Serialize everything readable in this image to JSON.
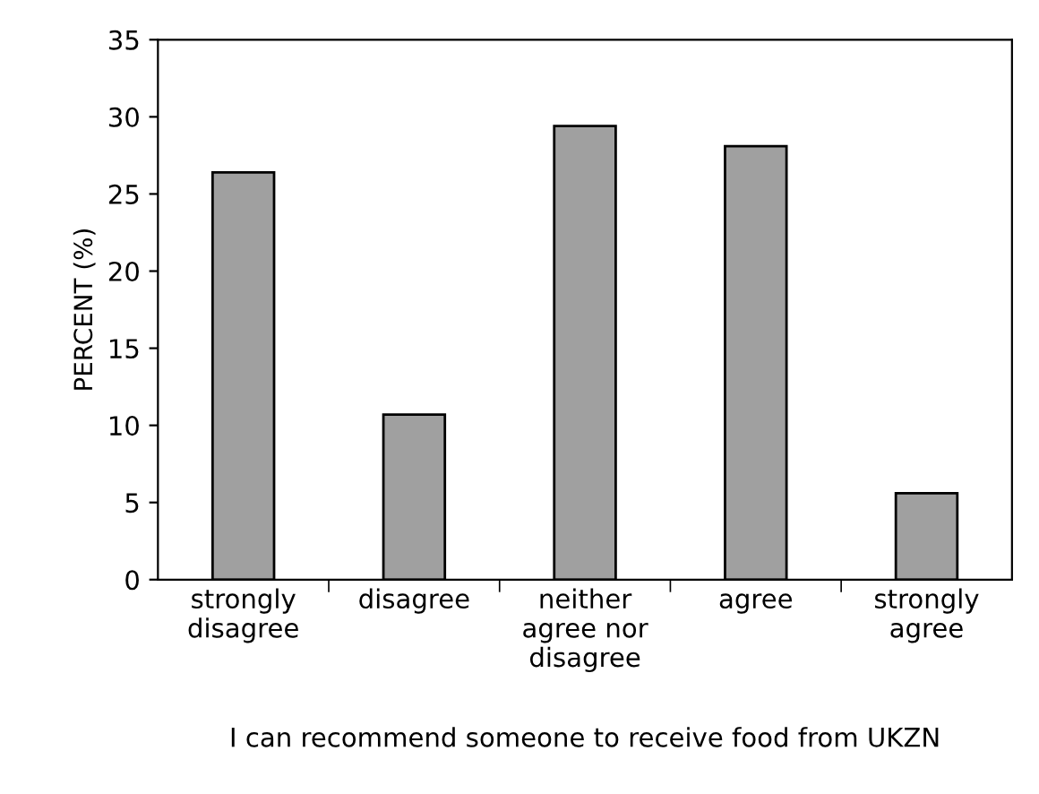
{
  "chart_data": {
    "type": "bar",
    "categories": [
      "strongly\ndisagree",
      "disagree",
      "neither\nagree nor\ndisagree",
      "agree",
      "strongly\nagree"
    ],
    "values": [
      26.4,
      10.7,
      29.4,
      28.1,
      5.6
    ],
    "color": "#a0a0a0",
    "ylabel": "PERCENT (%)",
    "xlabel": "I can recommend someone to receive food from UKZN",
    "ylim": [
      0,
      35
    ],
    "yticks": [
      0,
      5,
      10,
      15,
      20,
      25,
      30,
      35
    ],
    "grid": false,
    "legend": false
  }
}
